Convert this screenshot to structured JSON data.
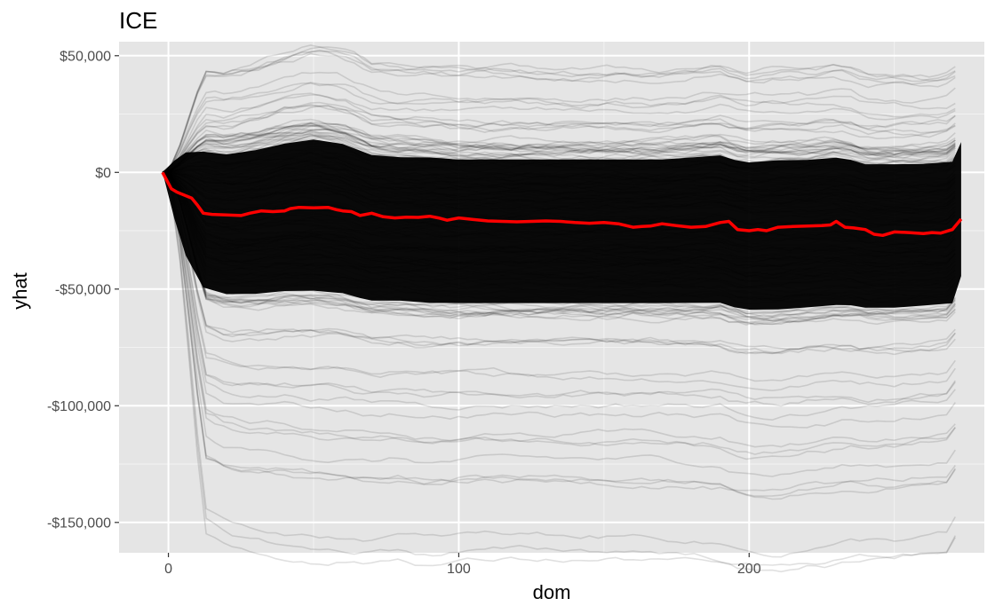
{
  "chart_data": {
    "type": "line",
    "title": "ICE",
    "xlabel": "dom",
    "ylabel": "yhat",
    "xlim": [
      -17,
      281
    ],
    "ylim": [
      -163000,
      56000
    ],
    "x_ticks": [
      {
        "value": 0,
        "label": "0"
      },
      {
        "value": 100,
        "label": "100"
      },
      {
        "value": 200,
        "label": "200"
      }
    ],
    "x_minor_ticks": [
      50,
      150,
      250
    ],
    "y_ticks": [
      {
        "value": 50000,
        "label": "$50,000"
      },
      {
        "value": 0,
        "label": "$0"
      },
      {
        "value": -50000,
        "label": "-$50,000"
      },
      {
        "value": -100000,
        "label": "-$100,000"
      },
      {
        "value": -150000,
        "label": "-$150,000"
      }
    ],
    "y_minor_ticks": [
      25000,
      -25000,
      -75000,
      -125000
    ],
    "grid": true,
    "panel_background": "#e5e5e5",
    "ice_curve_color": "#000000",
    "ice_curve_opacity": 0.12,
    "average_color": "#ff0000",
    "ice_band": {
      "x": [
        -2,
        2,
        6,
        12,
        20,
        30,
        40,
        50,
        60,
        66,
        70,
        80,
        90,
        100,
        120,
        140,
        160,
        170,
        180,
        190,
        195,
        200,
        210,
        220,
        230,
        235,
        240,
        250,
        260,
        270,
        273
      ],
      "upper": [
        0,
        8000,
        14000,
        16000,
        15000,
        17000,
        20000,
        22000,
        20000,
        17000,
        15000,
        14000,
        14000,
        13000,
        13000,
        13000,
        13000,
        13000,
        14000,
        15000,
        13000,
        12000,
        13000,
        13000,
        14000,
        13000,
        11000,
        11000,
        11000,
        12000,
        20000
      ],
      "lower": [
        0,
        -22000,
        -40000,
        -55000,
        -58000,
        -58000,
        -57000,
        -57000,
        -58000,
        -60000,
        -61000,
        -61000,
        -62000,
        -62000,
        -62000,
        -62000,
        -62000,
        -62000,
        -62000,
        -62000,
        -64000,
        -65000,
        -65000,
        -64000,
        -63000,
        -63000,
        -64000,
        -64000,
        -63000,
        -62000,
        -50000
      ]
    },
    "series": [
      {
        "x": [
          -2,
          1,
          3,
          6,
          8,
          10,
          12,
          15,
          20,
          25,
          28,
          32,
          36,
          40,
          42,
          45,
          50,
          55,
          58,
          60,
          63,
          66,
          70,
          74,
          78,
          82,
          86,
          90,
          93,
          96,
          100,
          105,
          110,
          115,
          120,
          125,
          130,
          135,
          140,
          145,
          150,
          155,
          160,
          163,
          166,
          170,
          175,
          180,
          185,
          190,
          193,
          196,
          200,
          203,
          206,
          210,
          215,
          220,
          225,
          228,
          230,
          233,
          236,
          240,
          243,
          246,
          250,
          255,
          260,
          263,
          266,
          270,
          273
        ],
        "y": [
          0,
          -7000,
          -8500,
          -10000,
          -11000,
          -14000,
          -17500,
          -18000,
          -18200,
          -18500,
          -17500,
          -16500,
          -16800,
          -16500,
          -15500,
          -15000,
          -15200,
          -15000,
          -16000,
          -16500,
          -16800,
          -18500,
          -17500,
          -19000,
          -19500,
          -19200,
          -19300,
          -18800,
          -19500,
          -20500,
          -19500,
          -20200,
          -20800,
          -21000,
          -21200,
          -21000,
          -20800,
          -21000,
          -21500,
          -21800,
          -21500,
          -22000,
          -23500,
          -23200,
          -23000,
          -22000,
          -22800,
          -23500,
          -23200,
          -21500,
          -21000,
          -24500,
          -25000,
          -24500,
          -25000,
          -23500,
          -23200,
          -23000,
          -22800,
          -22500,
          -21000,
          -23500,
          -23800,
          -24500,
          -26500,
          -27000,
          -25500,
          -25800,
          -26200,
          -25800,
          -26000,
          -24500,
          -20000
        ]
      }
    ]
  }
}
